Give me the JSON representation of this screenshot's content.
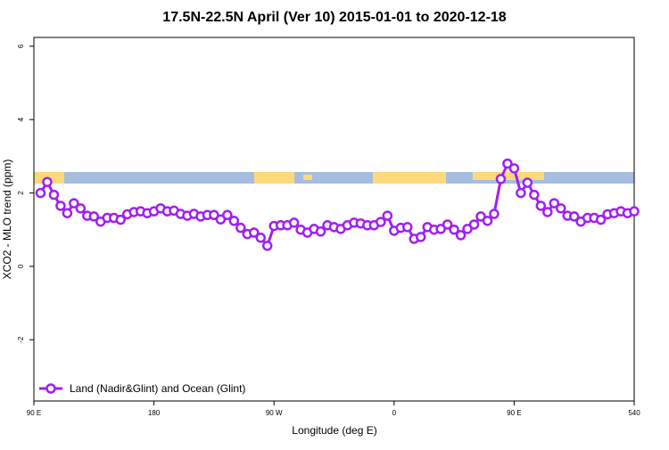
{
  "chart_data": {
    "type": "line",
    "title": "17.5N-22.5N April (Ver 10)   2015-01-01 to 2020-12-18",
    "x_label": "Longitude (deg E)",
    "y_label": "XCO2 - MLO trend (ppm)",
    "x": [
      95,
      100,
      105,
      110,
      115,
      120,
      125,
      130,
      135,
      140,
      145,
      150,
      155,
      160,
      165,
      170,
      175,
      180,
      185,
      190,
      195,
      200,
      205,
      210,
      215,
      220,
      225,
      230,
      235,
      240,
      245,
      250,
      255,
      260,
      265,
      270,
      275,
      280,
      285,
      290,
      295,
      300,
      305,
      310,
      315,
      320,
      325,
      330,
      335,
      340,
      345,
      350,
      355,
      360,
      365,
      370,
      375,
      380,
      385,
      390,
      395,
      400,
      405,
      410,
      415,
      420,
      425,
      430,
      435,
      440,
      445,
      450,
      455,
      460,
      465,
      470,
      475,
      480,
      485,
      490,
      495,
      500,
      505,
      510,
      515,
      520,
      525,
      530,
      535,
      540
    ],
    "series": [
      {
        "name": "Land (Nadir&Glint) and Ocean (Glint)",
        "color": "#a020f0",
        "values": [
          2.0,
          2.3,
          1.95,
          1.65,
          1.45,
          1.72,
          1.58,
          1.38,
          1.36,
          1.22,
          1.32,
          1.32,
          1.27,
          1.42,
          1.48,
          1.5,
          1.45,
          1.5,
          1.58,
          1.5,
          1.52,
          1.43,
          1.38,
          1.43,
          1.36,
          1.4,
          1.4,
          1.28,
          1.4,
          1.24,
          1.05,
          0.88,
          0.92,
          0.78,
          0.56,
          1.1,
          1.12,
          1.12,
          1.19,
          1.0,
          0.92,
          1.02,
          0.95,
          1.12,
          1.07,
          1.02,
          1.12,
          1.19,
          1.17,
          1.12,
          1.12,
          1.21,
          1.38,
          0.97,
          1.05,
          1.07,
          0.75,
          0.8,
          1.07,
          1.0,
          1.02,
          1.14,
          1.0,
          0.85,
          1.02,
          1.14,
          1.36,
          1.24,
          1.43,
          2.38,
          2.8,
          2.67,
          2.0,
          2.28,
          1.95,
          1.65,
          1.48,
          1.72,
          1.58,
          1.38,
          1.36,
          1.22,
          1.32,
          1.32,
          1.27,
          1.42,
          1.45,
          1.5,
          1.45,
          1.5
        ]
      }
    ],
    "xlim": [
      90,
      540
    ],
    "xticks": [
      {
        "value": 90,
        "label": "90 E"
      },
      180,
      {
        "value": 270,
        "label": "90 W"
      },
      {
        "value": 360,
        "label": "0"
      },
      {
        "value": 450,
        "label": "90 E"
      },
      540
    ],
    "ylim": [
      -3.67,
      6.24
    ],
    "yticks": [
      -2,
      0,
      2,
      4,
      6
    ],
    "legend": "bottom-left"
  }
}
